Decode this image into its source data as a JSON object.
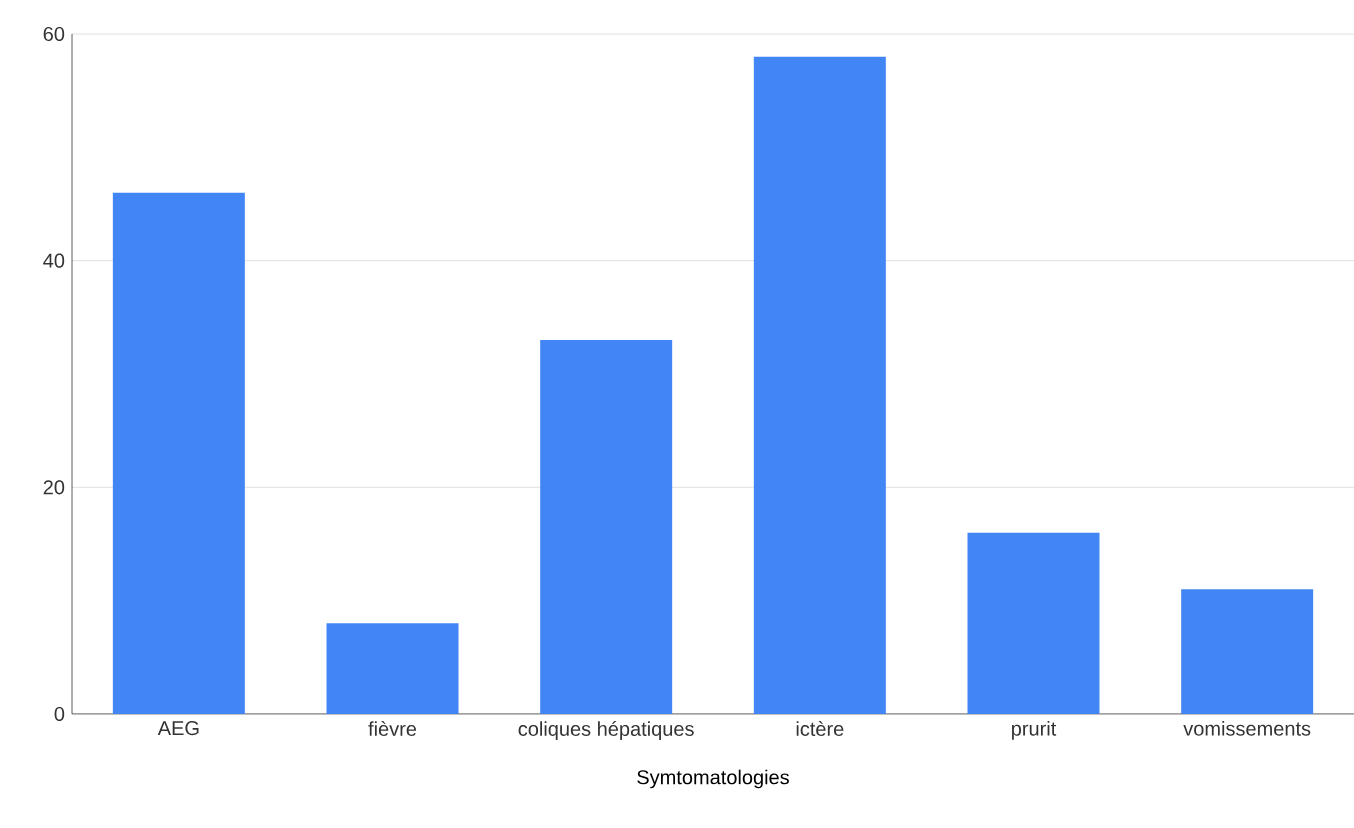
{
  "chart_data": {
    "type": "bar",
    "xlabel": "Symtomatologies",
    "categories": [
      "AEG",
      "fièvre",
      "coliques hépatiques",
      "ictère",
      "prurit",
      "vomissements"
    ],
    "values": [
      46,
      8,
      33,
      58,
      16,
      11
    ],
    "color": "#4285f4",
    "ylim": [
      0,
      60
    ],
    "yticks": [
      0,
      20,
      40,
      60
    ],
    "grid": "y"
  }
}
